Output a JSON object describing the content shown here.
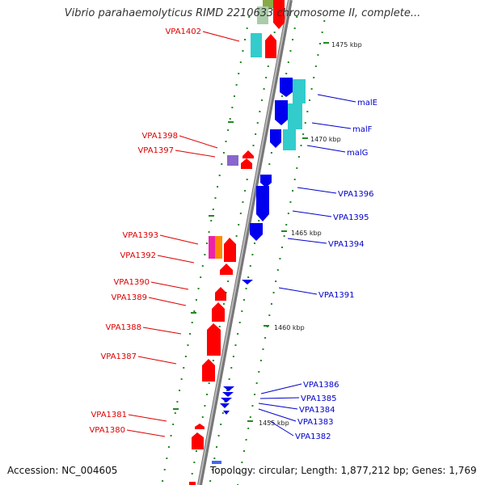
{
  "title": "Vibrio parahaemolyticus RIMD 2210633 chromosome II, complete...",
  "accession": "Accession: NC_004605",
  "topology": "Topology: circular; Length: 1,877,212 bp; Genes: 1,769",
  "colors": {
    "forward_gene": "#ff0000",
    "reverse_gene": "#0000ee",
    "cyan_gene": "#33cccc",
    "purple_gene": "#8866cc",
    "magenta_gene": "#ee22aa",
    "orange_gene": "#ff8800",
    "olive_gene": "#88aa44",
    "backbone": "#888888",
    "tick": "#228822"
  },
  "kbp_labels": [
    "1475 kbp",
    "1470 kbp",
    "1465 kbp",
    "1460 kbp",
    "1455 kbp"
  ],
  "left_labels": [
    "VPA1402",
    "VPA1398",
    "VPA1397",
    "VPA1393",
    "VPA1392",
    "VPA1390",
    "VPA1389",
    "VPA1388",
    "VPA1387",
    "VPA1381",
    "VPA1380"
  ],
  "right_labels": [
    "malE",
    "malF",
    "malG",
    "VPA1396",
    "VPA1395",
    "VPA1394",
    "VPA1391",
    "VPA1386",
    "VPA1385",
    "VPA1384",
    "VPA1383",
    "VPA1382"
  ]
}
